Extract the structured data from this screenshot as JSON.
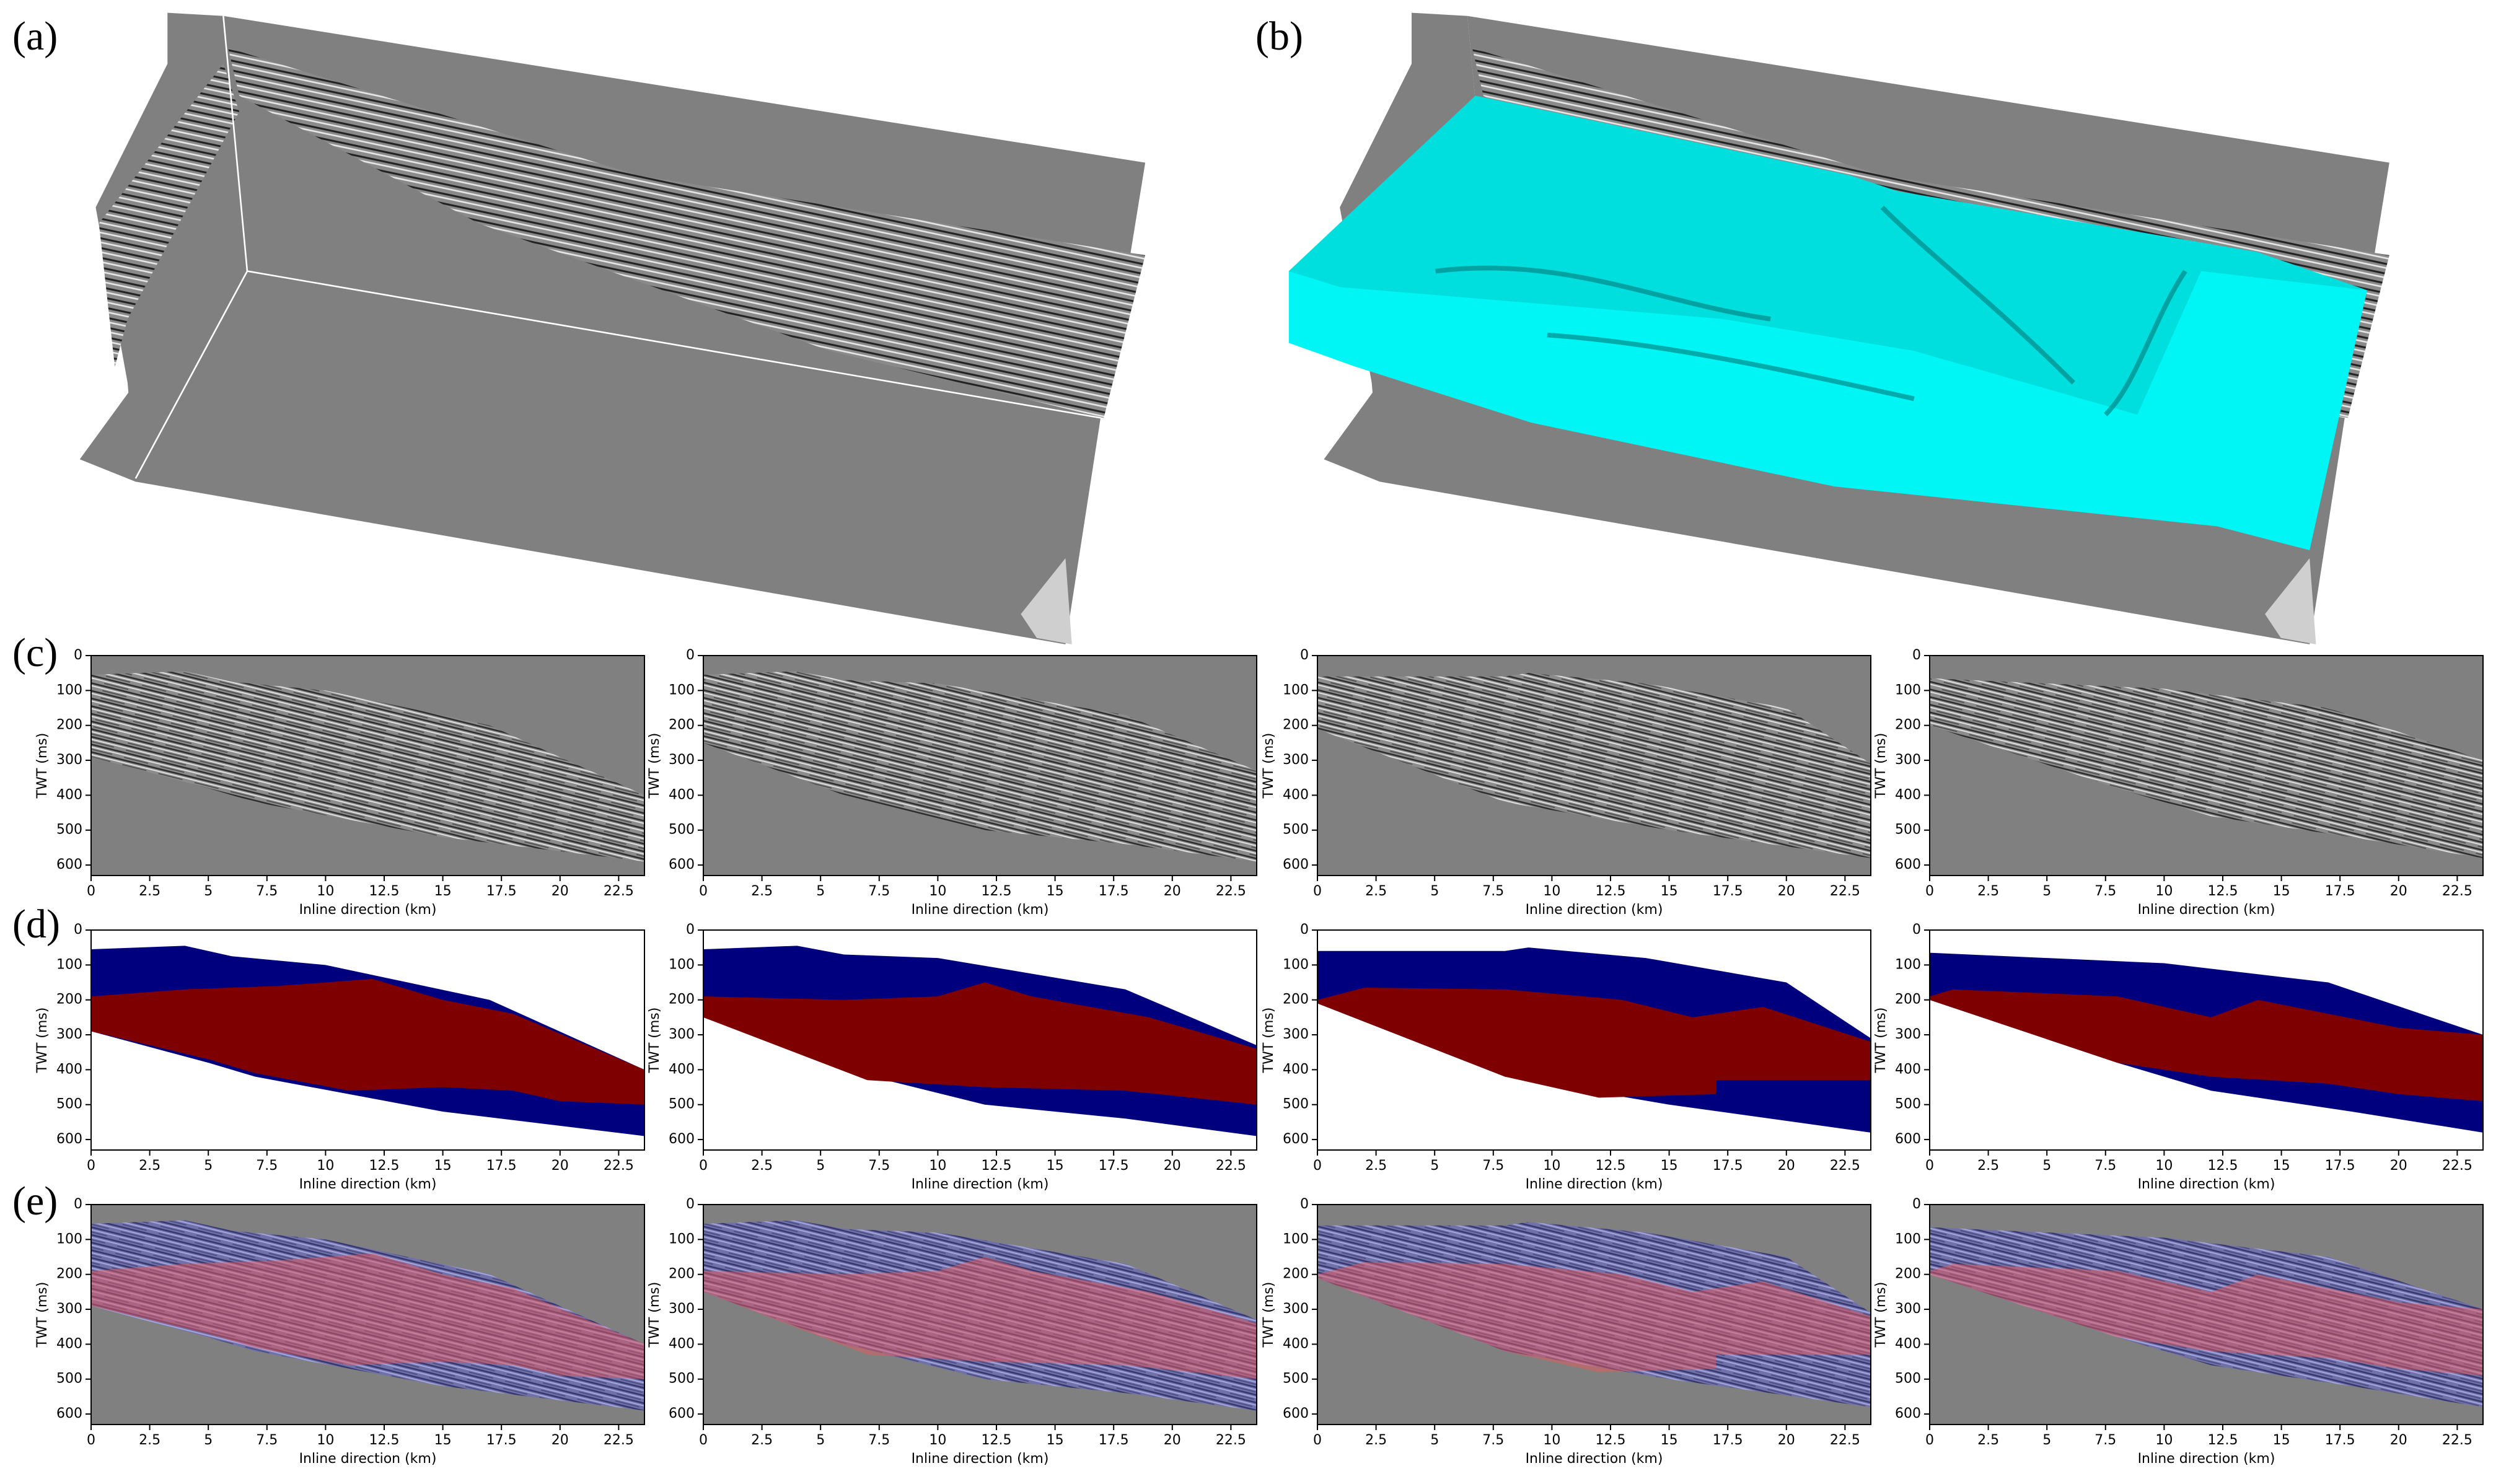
{
  "panel_labels": [
    "(a)",
    "(b)",
    "(c)",
    "(d)",
    "(e)"
  ],
  "chart_data": [
    {
      "type": "image",
      "style": "seismic",
      "xlabel": "Inline direction (km)",
      "ylabel": "TWT (ms)",
      "xlim": [
        0,
        23.6
      ],
      "ylim": [
        630,
        0
      ],
      "xticks": [
        0,
        2.5,
        5,
        7.5,
        10,
        12.5,
        15,
        17.5,
        20,
        22.5
      ],
      "yticks": [
        0,
        100,
        200,
        300,
        400,
        500,
        600
      ]
    },
    {
      "type": "image",
      "style": "seismic",
      "xlabel": "Inline direction (km)",
      "ylabel": "TWT (ms)",
      "xlim": [
        0,
        23.6
      ],
      "ylim": [
        630,
        0
      ],
      "xticks": [
        0,
        2.5,
        5,
        7.5,
        10,
        12.5,
        15,
        17.5,
        20,
        22.5
      ],
      "yticks": [
        0,
        100,
        200,
        300,
        400,
        500,
        600
      ]
    },
    {
      "type": "image",
      "style": "seismic",
      "xlabel": "Inline direction (km)",
      "ylabel": "TWT (ms)",
      "xlim": [
        0,
        23.6
      ],
      "ylim": [
        630,
        0
      ],
      "xticks": [
        0,
        2.5,
        5,
        7.5,
        10,
        12.5,
        15,
        17.5,
        20,
        22.5
      ],
      "yticks": [
        0,
        100,
        200,
        300,
        400,
        500,
        600
      ]
    },
    {
      "type": "image",
      "style": "seismic",
      "xlabel": "Inline direction (km)",
      "ylabel": "TWT (ms)",
      "xlim": [
        0,
        23.6
      ],
      "ylim": [
        630,
        0
      ],
      "xticks": [
        0,
        2.5,
        5,
        7.5,
        10,
        12.5,
        15,
        17.5,
        20,
        22.5
      ],
      "yticks": [
        0,
        100,
        200,
        300,
        400,
        500,
        600
      ]
    },
    {
      "type": "image",
      "style": "facies",
      "xlabel": "Inline direction (km)",
      "ylabel": "TWT (ms)",
      "xlim": [
        0,
        23.6
      ],
      "ylim": [
        630,
        0
      ],
      "xticks": [
        0,
        2.5,
        5,
        7.5,
        10,
        12.5,
        15,
        17.5,
        20,
        22.5
      ],
      "yticks": [
        0,
        100,
        200,
        300,
        400,
        500,
        600
      ]
    },
    {
      "type": "image",
      "style": "facies",
      "xlabel": "Inline direction (km)",
      "ylabel": "TWT (ms)",
      "xlim": [
        0,
        23.6
      ],
      "ylim": [
        630,
        0
      ],
      "xticks": [
        0,
        2.5,
        5,
        7.5,
        10,
        12.5,
        15,
        17.5,
        20,
        22.5
      ],
      "yticks": [
        0,
        100,
        200,
        300,
        400,
        500,
        600
      ]
    },
    {
      "type": "image",
      "style": "facies",
      "xlabel": "Inline direction (km)",
      "ylabel": "TWT (ms)",
      "xlim": [
        0,
        23.6
      ],
      "ylim": [
        630,
        0
      ],
      "xticks": [
        0,
        2.5,
        5,
        7.5,
        10,
        12.5,
        15,
        17.5,
        20,
        22.5
      ],
      "yticks": [
        0,
        100,
        200,
        300,
        400,
        500,
        600
      ]
    },
    {
      "type": "image",
      "style": "facies",
      "xlabel": "Inline direction (km)",
      "ylabel": "TWT (ms)",
      "xlim": [
        0,
        23.6
      ],
      "ylim": [
        630,
        0
      ],
      "xticks": [
        0,
        2.5,
        5,
        7.5,
        10,
        12.5,
        15,
        17.5,
        20,
        22.5
      ],
      "yticks": [
        0,
        100,
        200,
        300,
        400,
        500,
        600
      ]
    },
    {
      "type": "image",
      "style": "overlay",
      "xlabel": "Inline direction (km)",
      "ylabel": "TWT (ms)",
      "xlim": [
        0,
        23.6
      ],
      "ylim": [
        630,
        0
      ],
      "xticks": [
        0,
        2.5,
        5,
        7.5,
        10,
        12.5,
        15,
        17.5,
        20,
        22.5
      ],
      "yticks": [
        0,
        100,
        200,
        300,
        400,
        500,
        600
      ]
    },
    {
      "type": "image",
      "style": "overlay",
      "xlabel": "Inline direction (km)",
      "ylabel": "TWT (ms)",
      "xlim": [
        0,
        23.6
      ],
      "ylim": [
        630,
        0
      ],
      "xticks": [
        0,
        2.5,
        5,
        7.5,
        10,
        12.5,
        15,
        17.5,
        20,
        22.5
      ],
      "yticks": [
        0,
        100,
        200,
        300,
        400,
        500,
        600
      ]
    },
    {
      "type": "image",
      "style": "overlay",
      "xlabel": "Inline direction (km)",
      "ylabel": "TWT (ms)",
      "xlim": [
        0,
        23.6
      ],
      "ylim": [
        630,
        0
      ],
      "xticks": [
        0,
        2.5,
        5,
        7.5,
        10,
        12.5,
        15,
        17.5,
        20,
        22.5
      ],
      "yticks": [
        0,
        100,
        200,
        300,
        400,
        500,
        600
      ]
    },
    {
      "type": "image",
      "style": "overlay",
      "xlabel": "Inline direction (km)",
      "ylabel": "TWT (ms)",
      "xlim": [
        0,
        23.6
      ],
      "ylim": [
        630,
        0
      ],
      "xticks": [
        0,
        2.5,
        5,
        7.5,
        10,
        12.5,
        15,
        17.5,
        20,
        22.5
      ],
      "yticks": [
        0,
        100,
        200,
        300,
        400,
        500,
        600
      ]
    }
  ]
}
